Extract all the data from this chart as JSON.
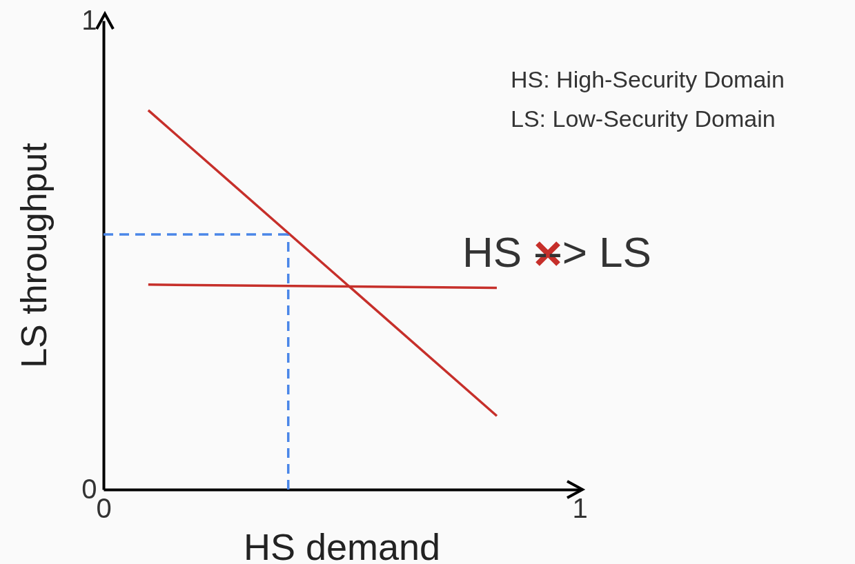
{
  "chart_data": {
    "type": "line",
    "xlabel": "HS demand",
    "ylabel": "LS throughput",
    "xlim": [
      0,
      1
    ],
    "ylim": [
      0,
      1
    ],
    "xticks": [
      0,
      1
    ],
    "yticks": [
      0,
      1
    ],
    "grid": false,
    "series": [
      {
        "color": "#c62f2a",
        "x": [
          0.094,
          0.826
        ],
        "values": [
          0.809,
          0.157
        ]
      },
      {
        "color": "#c62f2a",
        "x": [
          0.094,
          0.826
        ],
        "values": [
          0.437,
          0.43
        ]
      },
      {
        "color": "#4a86e8",
        "line_style": "dashed",
        "x": [
          0,
          0.388
        ],
        "values": [
          0.544,
          0.544
        ]
      },
      {
        "color": "#4a86e8",
        "line_style": "dashed",
        "x": [
          0.388,
          0.388
        ],
        "values": [
          0,
          0.544
        ]
      }
    ],
    "annotations": [
      "HS: High-Security Domain",
      "LS: Low-Security Domain",
      "HS --> LS"
    ]
  }
}
